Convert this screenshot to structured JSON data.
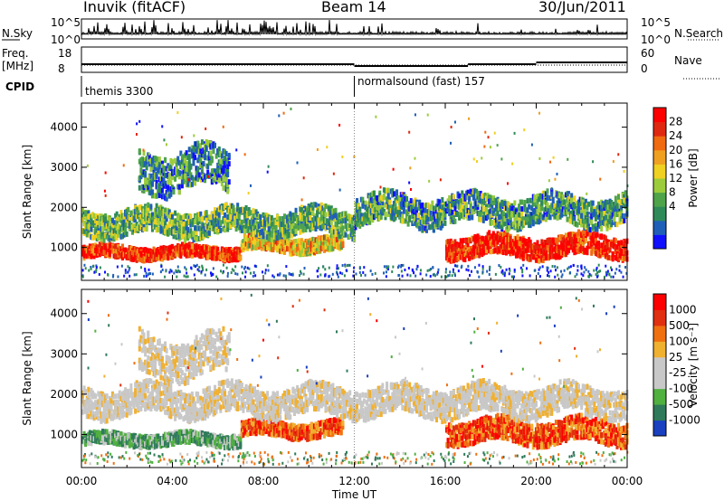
{
  "header": {
    "station": "Inuvik (fitACF)",
    "beam": "Beam 14",
    "date": "30/Jun/2011"
  },
  "top_panels": {
    "nsky_label": "N.Sky",
    "nsearch_label": "N.Search",
    "nsky_ticks": [
      "10^5",
      "10^0"
    ],
    "nsearch_ticks": [
      "10^5",
      "10^0"
    ],
    "freq_label_1": "Freq.",
    "freq_label_2": "[MHz]",
    "freq_ticks": [
      "18",
      "8"
    ],
    "nave_label": "Nave",
    "nave_ticks": [
      "60",
      "0"
    ],
    "cpid_label": "CPID",
    "cpid_segments": [
      {
        "name": "themis 3300",
        "start_hour": 0
      },
      {
        "name": "normalsound (fast) 157",
        "start_hour": 12
      }
    ]
  },
  "chart_data": [
    {
      "type": "heatmap",
      "name": "power",
      "ylabel": "Slant Range [km]",
      "xlabel": "",
      "ylim": [
        180,
        4600
      ],
      "yticks": [
        "1000",
        "2000",
        "3000",
        "4000"
      ],
      "xticks": [
        "00:00",
        "04:00",
        "08:00",
        "12:00",
        "16:00",
        "20:00",
        "00:00"
      ],
      "xlim_hours": [
        0,
        24
      ],
      "colorbar": {
        "label": "Power [dB]",
        "ticks": [
          "28",
          "24",
          "20",
          "16",
          "12",
          "8",
          "4"
        ],
        "colors": [
          "#1010ff",
          "#1f5fb8",
          "#2f8a5a",
          "#4fa44a",
          "#9ccc3c",
          "#f0d020",
          "#f0a020",
          "#f06a10",
          "#e02810",
          "#ff0000"
        ]
      },
      "bands": [
        {
          "t0": 0.0,
          "t1": 7.0,
          "r": 850,
          "w": 130,
          "level": 0.85
        },
        {
          "t0": 7.0,
          "t1": 11.5,
          "r": 1050,
          "w": 160,
          "level": 0.6
        },
        {
          "t0": 16.0,
          "t1": 24.0,
          "r": 1000,
          "w": 230,
          "level": 0.9
        },
        {
          "t0": 0.0,
          "t1": 12.0,
          "r": 1600,
          "w": 280,
          "level": 0.35
        },
        {
          "t0": 12.0,
          "t1": 24.0,
          "r": 1900,
          "w": 320,
          "level": 0.3
        },
        {
          "t0": 2.5,
          "t1": 6.5,
          "r": 2900,
          "w": 450,
          "level": 0.25
        }
      ]
    },
    {
      "type": "heatmap",
      "name": "velocity",
      "ylabel": "Slant Range [km]",
      "xlabel": "Time UT",
      "ylim": [
        180,
        4600
      ],
      "yticks": [
        "1000",
        "2000",
        "3000",
        "4000"
      ],
      "xticks": [
        "00:00",
        "04:00",
        "08:00",
        "12:00",
        "16:00",
        "20:00",
        "00:00"
      ],
      "xlim_hours": [
        0,
        24
      ],
      "colorbar": {
        "label": "Velocity [m s⁻¹]",
        "ticks": [
          "1000",
          "500",
          "100",
          "25",
          "-25",
          "-100",
          "-500",
          "-1000"
        ],
        "colors": [
          "#1840c0",
          "#2f7a5a",
          "#50b040",
          "#c8c8c8",
          "#c8c8c8",
          "#f0b030",
          "#f07010",
          "#e03010",
          "#ff0000"
        ]
      },
      "bands": [
        {
          "t0": 0.0,
          "t1": 7.0,
          "r": 850,
          "w": 130,
          "kind": "green"
        },
        {
          "t0": 7.0,
          "t1": 11.5,
          "r": 1100,
          "w": 160,
          "kind": "orange"
        },
        {
          "t0": 16.0,
          "t1": 24.0,
          "r": 1050,
          "w": 250,
          "kind": "orange"
        },
        {
          "t0": 0.0,
          "t1": 24.0,
          "r": 1800,
          "w": 320,
          "kind": "gray"
        },
        {
          "t0": 2.5,
          "t1": 6.5,
          "r": 2900,
          "w": 450,
          "kind": "gray"
        }
      ]
    }
  ]
}
